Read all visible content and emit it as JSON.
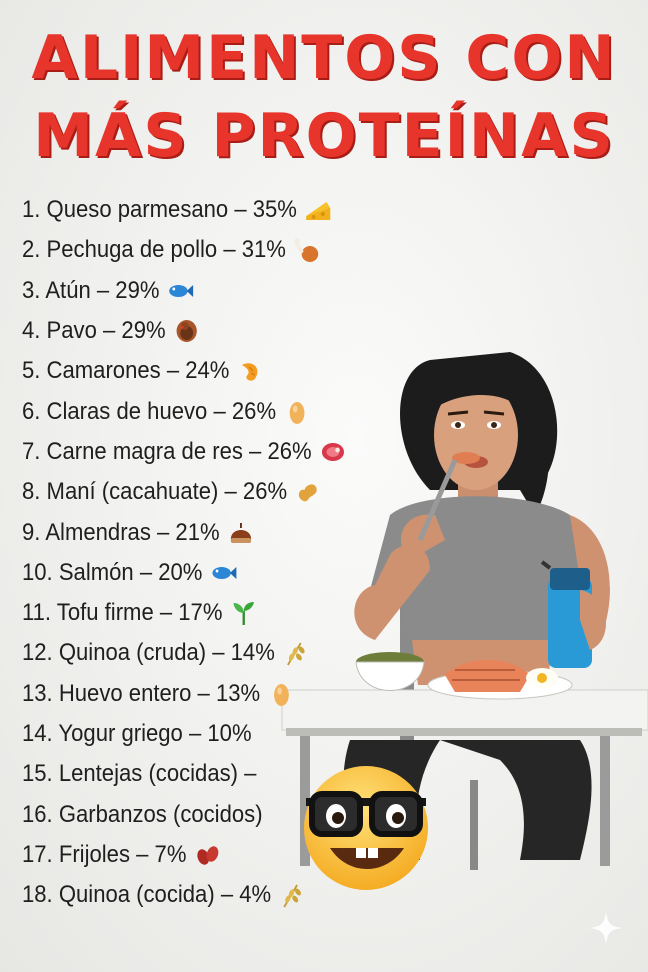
{
  "title": {
    "line1": "ALIMENTOS CON",
    "line2": "MÁS PROTEÍNAS"
  },
  "items": [
    {
      "text": "1. Queso parmesano – 35%",
      "icon": "cheese-icon"
    },
    {
      "text": "2. Pechuga de pollo – 31%",
      "icon": "chicken-leg-icon"
    },
    {
      "text": "3. Atún – 29%",
      "icon": "fish-icon"
    },
    {
      "text": "4. Pavo – 29%",
      "icon": "turkey-icon"
    },
    {
      "text": "5. Camarones – 24%",
      "icon": "shrimp-icon"
    },
    {
      "text": "6. Claras de huevo – 26%",
      "icon": "egg-icon"
    },
    {
      "text": "7. Carne magra de res – 26%",
      "icon": "meat-icon"
    },
    {
      "text": "8. Maní (cacahuate) – 26%",
      "icon": "peanut-icon"
    },
    {
      "text": "9. Almendras – 21%",
      "icon": "chestnut-icon"
    },
    {
      "text": "10. Salmón – 20%",
      "icon": "fish-icon"
    },
    {
      "text": "11. Tofu firme – 17%",
      "icon": "seedling-icon"
    },
    {
      "text": "12. Quinoa (cruda) – 14%",
      "icon": "grain-icon"
    },
    {
      "text": "13. Huevo entero – 13%",
      "icon": "egg-icon"
    },
    {
      "text": "14. Yogur griego – 10%",
      "icon": ""
    },
    {
      "text": "15. Lentejas (cocidas) –",
      "icon": ""
    },
    {
      "text": "16. Garbanzos (cocidos)",
      "icon": ""
    },
    {
      "text": "17. Frijoles – 7%",
      "icon": "beans-icon"
    },
    {
      "text": "18. Quinoa (cocida) – 4%",
      "icon": "grain-icon"
    }
  ],
  "colors": {
    "title": "#e8352b",
    "text": "#1f1f1f",
    "background": "#f1f1ef"
  }
}
